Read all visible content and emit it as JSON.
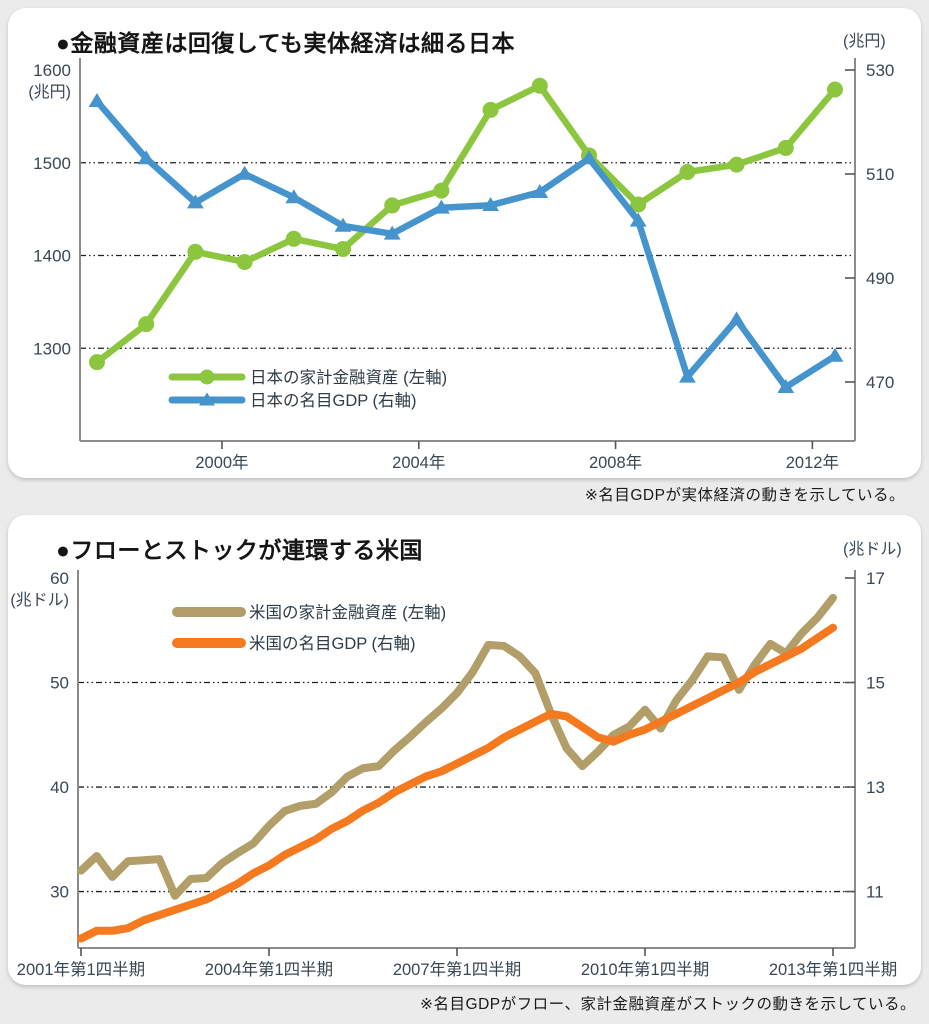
{
  "page": {
    "background_color": "#ebebeb",
    "card_color": "#ffffff"
  },
  "chart_data": [
    {
      "type": "line",
      "title": "●金融資産は回復しても実体経済は細る日本",
      "note": "※名目GDPが実体経済の動きを示している。",
      "x_years": [
        1997,
        1998,
        1999,
        2000,
        2001,
        2002,
        2003,
        2004,
        2005,
        2006,
        2007,
        2008,
        2009,
        2010,
        2011,
        2012
      ],
      "x_axis": {
        "tick_labels": [
          "2000年",
          "2004年",
          "2008年",
          "2012年"
        ],
        "tick_positions": [
          2.54,
          6.54,
          10.54,
          14.54
        ]
      },
      "left_axis": {
        "unit": "(兆円)",
        "ticks": [
          1600,
          1500,
          1400,
          1300
        ],
        "gridlines": [
          1500,
          1400,
          1300
        ],
        "range": [
          1200,
          1600
        ]
      },
      "right_axis": {
        "unit": "(兆円)",
        "ticks": [
          530,
          510,
          490,
          470
        ],
        "range": [
          458.65,
          530
        ]
      },
      "legend_position": "inside-lower-left",
      "grid": "dashed-horizontal",
      "series": [
        {
          "name": "日本の家計金融資産 (左軸)",
          "axis": "left",
          "color": "#8cc63e",
          "marker": "circle",
          "values": [
            1285,
            1326,
            1404,
            1393,
            1418,
            1407,
            1454,
            1470,
            1557,
            1583,
            1508,
            1455,
            1490,
            1498,
            1516,
            1579
          ]
        },
        {
          "name": "日本の名目GDP (右軸)",
          "axis": "right",
          "color": "#4594ce",
          "marker": "triangle",
          "values": [
            524,
            513,
            504.5,
            510,
            505.5,
            500,
            498.5,
            503.5,
            504,
            506.5,
            513,
            501,
            471,
            482,
            469,
            475
          ]
        }
      ]
    },
    {
      "type": "line",
      "title": "●フローとストックが連環する米国",
      "note": "※名目GDPがフロー、家計金融資産がストックの動きを示している。",
      "x_range": "2001Q1 to 2013Q1, quarterly, 49 points",
      "x_axis": {
        "tick_labels": [
          "2001年第1四半期",
          "2004年第1四半期",
          "2007年第1四半期",
          "2010年第1四半期",
          "2013年第1四半期"
        ],
        "tick_positions": [
          0,
          12,
          24,
          36,
          48
        ]
      },
      "left_axis": {
        "unit": "(兆ドル)",
        "ticks": [
          60,
          50,
          40,
          30
        ],
        "gridlines": [
          50,
          40,
          30
        ],
        "range": [
          24.6,
          60
        ]
      },
      "right_axis": {
        "unit": "(兆ドル)",
        "ticks": [
          17,
          15,
          13,
          11
        ],
        "range": [
          9.92,
          17
        ]
      },
      "legend_position": "inside-upper-left",
      "grid": "dashed-horizontal",
      "series": [
        {
          "name": "米国の家計金融資産 (左軸)",
          "axis": "left",
          "color": "#b19e68",
          "marker": "none",
          "values": [
            32.0,
            33.4,
            31.4,
            32.9,
            33.0,
            33.1,
            29.6,
            31.2,
            31.3,
            32.7,
            33.7,
            34.6,
            36.3,
            37.7,
            38.2,
            38.4,
            39.5,
            41.0,
            41.8,
            42.0,
            43.5,
            44.8,
            46.2,
            47.5,
            49.0,
            51.0,
            53.6,
            53.5,
            52.5,
            50.9,
            47.0,
            43.7,
            42.0,
            43.4,
            45.0,
            45.8,
            47.4,
            45.6,
            48.3,
            50.2,
            52.5,
            52.4,
            49.3,
            51.7,
            53.7,
            52.8,
            54.7,
            56.2,
            58.1
          ]
        },
        {
          "name": "米国の名目GDP (右軸)",
          "axis": "right",
          "color": "#f57a1f",
          "marker": "none",
          "values": [
            10.1,
            10.25,
            10.25,
            10.3,
            10.45,
            10.55,
            10.65,
            10.75,
            10.85,
            11.0,
            11.15,
            11.35,
            11.5,
            11.7,
            11.85,
            12.0,
            12.2,
            12.35,
            12.55,
            12.7,
            12.9,
            13.05,
            13.2,
            13.3,
            13.45,
            13.6,
            13.75,
            13.95,
            14.1,
            14.25,
            14.4,
            14.35,
            14.15,
            13.95,
            13.87,
            14.0,
            14.1,
            14.25,
            14.4,
            14.55,
            14.7,
            14.85,
            15.0,
            15.2,
            15.35,
            15.5,
            15.65,
            15.85,
            16.05
          ]
        }
      ]
    }
  ]
}
